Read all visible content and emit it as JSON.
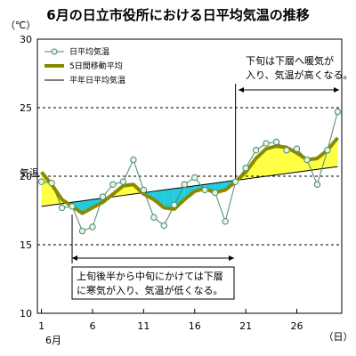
{
  "chart_data": {
    "type": "line",
    "title": "6月の日立市役所における日平均気温の推移",
    "ylabel": "気温",
    "yunit": "（℃）",
    "xunit": "（日）",
    "month_label": "6月",
    "ylim": [
      10,
      30
    ],
    "yticks": [
      10,
      15,
      20,
      25,
      30
    ],
    "xlim": [
      0.6,
      30.4
    ],
    "xticks": [
      {
        "v": 1,
        "label": "1"
      },
      {
        "v": 6,
        "label": "6"
      },
      {
        "v": 11,
        "label": "11"
      },
      {
        "v": 16,
        "label": "16"
      },
      {
        "v": 21,
        "label": "21"
      },
      {
        "v": 26,
        "label": "26"
      }
    ],
    "grid": {
      "dashed_y": [
        15,
        20,
        25
      ],
      "vertical_markers": [
        4,
        20
      ]
    },
    "legend": [
      {
        "key": "daily",
        "label": "日平均気温"
      },
      {
        "key": "ma5",
        "label": "5日間移動平均"
      },
      {
        "key": "normal",
        "label": "平年日平均気温"
      }
    ],
    "legend_position": "top-left",
    "x": [
      1,
      2,
      3,
      4,
      5,
      6,
      7,
      8,
      9,
      10,
      11,
      12,
      13,
      14,
      15,
      16,
      17,
      18,
      19,
      20,
      21,
      22,
      23,
      24,
      25,
      26,
      27,
      28,
      29,
      30
    ],
    "series": [
      {
        "key": "daily",
        "name": "日平均気温",
        "color": "#4a8a6a",
        "values": [
          19.6,
          19.5,
          17.7,
          17.8,
          16.0,
          16.3,
          18.5,
          19.4,
          19.6,
          21.2,
          19.0,
          17.0,
          16.4,
          17.9,
          19.4,
          19.9,
          19.0,
          18.8,
          16.7,
          19.6,
          20.6,
          21.9,
          22.4,
          22.5,
          21.9,
          22.0,
          21.2,
          19.4,
          21.9,
          24.7
        ]
      },
      {
        "key": "ma5",
        "name": "5日間移動平均",
        "color": "#8a8a00",
        "values": [
          20.3,
          19.4,
          18.3,
          17.8,
          17.3,
          17.7,
          18.1,
          18.7,
          19.3,
          19.4,
          18.7,
          18.3,
          17.7,
          17.6,
          18.3,
          18.9,
          19.1,
          18.8,
          19.0,
          19.6,
          20.3,
          21.3,
          22.0,
          22.2,
          22.1,
          21.7,
          21.2,
          21.3,
          21.9,
          22.8
        ]
      },
      {
        "key": "normal",
        "name": "平年日平均気温",
        "color": "#000000",
        "values": [
          17.8,
          17.9,
          18.0,
          18.1,
          18.2,
          18.3,
          18.4,
          18.5,
          18.6,
          18.7,
          18.8,
          18.9,
          19.0,
          19.1,
          19.2,
          19.3,
          19.4,
          19.5,
          19.6,
          19.7,
          19.8,
          19.9,
          20.0,
          20.1,
          20.2,
          20.3,
          20.4,
          20.5,
          20.6,
          20.7
        ]
      }
    ],
    "fill_colors": {
      "above_normal": "#ffff44",
      "below_normal": "#22ccdd"
    },
    "annotations": [
      {
        "key": "late",
        "lines": [
          "下旬は下層へ暖気が",
          "入り、気温が高くなる。"
        ],
        "range": [
          20,
          30.4
        ]
      },
      {
        "key": "early",
        "lines": [
          "上旬後半から中旬にかけては下層",
          "に寒気が入り、気温が低くなる。"
        ],
        "range": [
          4,
          20
        ]
      }
    ]
  }
}
